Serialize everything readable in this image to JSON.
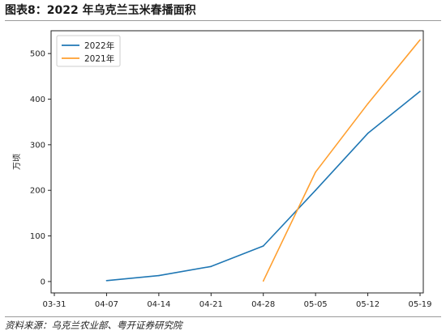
{
  "figure": {
    "title": "图表8：2022 年乌克兰玉米春播面积",
    "source": "资料来源：乌克兰农业部、粤开证券研究院"
  },
  "chart_data": {
    "type": "line",
    "ylabel": "万顷",
    "x": [
      "03-31",
      "04-07",
      "04-14",
      "04-21",
      "04-28",
      "05-05",
      "05-12",
      "05-19"
    ],
    "xlim": [
      "03-31",
      "05-19"
    ],
    "ylim": [
      -25,
      550
    ],
    "yticks": [
      0,
      100,
      200,
      300,
      400,
      500
    ],
    "grid": false,
    "legend": "top-left",
    "series": [
      {
        "name": "2022年",
        "color": "#1f77b4",
        "points": [
          {
            "x": "04-07",
            "y": 2
          },
          {
            "x": "04-14",
            "y": 13
          },
          {
            "x": "04-21",
            "y": 33
          },
          {
            "x": "04-28",
            "y": 78
          },
          {
            "x": "05-05",
            "y": 200
          },
          {
            "x": "05-12",
            "y": 325
          },
          {
            "x": "05-19",
            "y": 417
          }
        ]
      },
      {
        "name": "2021年",
        "color": "#ff9f2f",
        "points": [
          {
            "x": "04-28",
            "y": 1
          },
          {
            "x": "05-05",
            "y": 240
          },
          {
            "x": "05-12",
            "y": 390
          },
          {
            "x": "05-19",
            "y": 530
          }
        ]
      }
    ]
  }
}
